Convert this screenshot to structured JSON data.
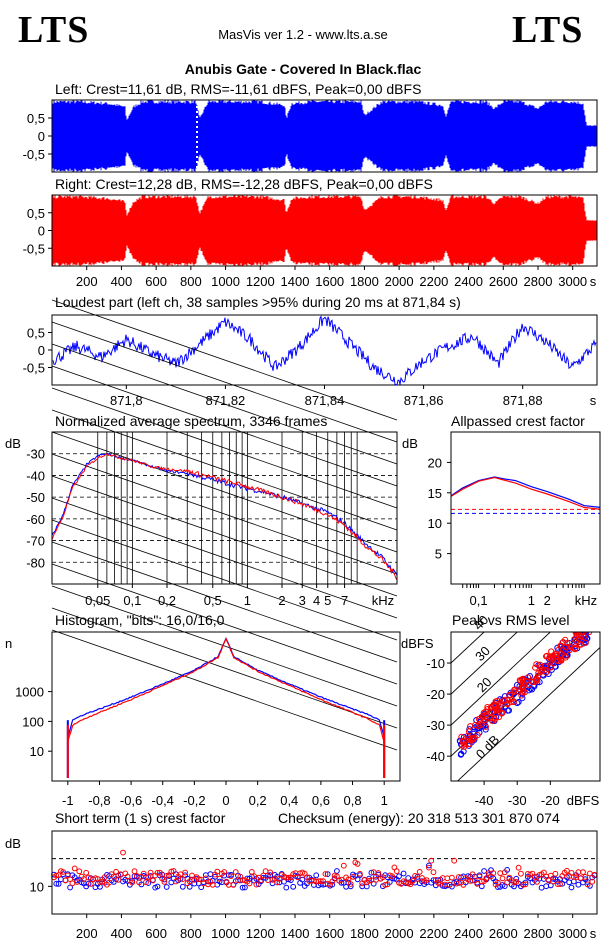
{
  "header": {
    "logo_left": "LTS",
    "logo_right": "LTS",
    "app_title": "MasVis ver 1.2 - www.lts.a.se",
    "file_title": "Anubis Gate - Covered In Black.flac"
  },
  "captions": {
    "left": "Left: Crest=11,61 dB, RMS=-11,61 dBFS, Peak=0,00 dBFS",
    "right": "Right: Crest=12,28 dB, RMS=-12,28 dBFS, Peak=0,00 dBFS",
    "loudest": "Loudest part (left  ch, 38 samples >95% during 20 ms at 871,84 s)",
    "spectrum": "Normalized average spectrum, 3346 frames",
    "allpass": "Allpassed crest factor",
    "histogram": "Histogram, \"bits\": 16,0/16,0",
    "peak_rms": "Peak vs RMS level",
    "short_term": "Short term (1 s) crest factor",
    "checksum": "Checksum (energy):  20 318 513 301 870 074"
  },
  "colors": {
    "left": "#0000ff",
    "right": "#ff0000"
  },
  "chart_data": [
    {
      "id": "left-waveform",
      "type": "area",
      "title": "Left: Crest=11,61 dB, RMS=-11,61 dBFS, Peak=0,00 dBFS",
      "series": [
        {
          "name": "Left",
          "color": "#0000ff"
        }
      ],
      "xlim": [
        0,
        3140
      ],
      "ylim": [
        -1,
        1
      ],
      "y_ticks": [
        "0,5",
        "0",
        "-0,5"
      ],
      "envelope": {
        "x": [
          0,
          60,
          150,
          320,
          420,
          430,
          470,
          520,
          700,
          830,
          850,
          900,
          1000,
          1200,
          1340,
          1350,
          1380,
          1500,
          1700,
          1780,
          1800,
          1900,
          2100,
          2250,
          2270,
          2300,
          2500,
          2550,
          2600,
          2700,
          2800,
          2850,
          2900,
          3000,
          3060,
          3080,
          3140
        ],
        "amplitude": [
          1,
          1,
          1,
          0.95,
          0.85,
          0.45,
          0.85,
          1,
          1,
          1,
          0.5,
          1,
          1,
          1,
          0.9,
          0.5,
          0.95,
          1,
          1,
          1,
          0.6,
          1,
          1,
          0.9,
          0.6,
          1,
          1,
          0.8,
          1,
          1,
          0.8,
          1,
          1,
          1,
          0.95,
          0.3,
          0.3
        ]
      }
    },
    {
      "id": "right-waveform",
      "type": "area",
      "title": "Right: Crest=12,28 dB, RMS=-12,28 dBFS, Peak=0,00 dBFS",
      "series": [
        {
          "name": "Right",
          "color": "#ff0000"
        }
      ],
      "xlim": [
        0,
        3140
      ],
      "ylim": [
        -1,
        1
      ],
      "y_ticks": [
        "0,5",
        "0",
        "-0,5"
      ],
      "x_ticks": [
        "200",
        "400",
        "600",
        "800",
        "1000",
        "1200",
        "1400",
        "1600",
        "1800",
        "2000",
        "2200",
        "2400",
        "2600",
        "2800",
        "3000"
      ],
      "xlabel": "s",
      "envelope": {
        "x": [
          0,
          60,
          150,
          320,
          420,
          430,
          470,
          520,
          700,
          830,
          850,
          900,
          1000,
          1200,
          1340,
          1350,
          1380,
          1500,
          1700,
          1780,
          1800,
          1900,
          2100,
          2250,
          2270,
          2300,
          2500,
          2550,
          2600,
          2700,
          2800,
          2850,
          2900,
          3000,
          3060,
          3080,
          3140
        ],
        "amplitude": [
          1,
          1,
          1,
          0.95,
          0.85,
          0.45,
          0.85,
          1,
          1,
          1,
          0.5,
          1,
          1,
          1,
          0.9,
          0.5,
          0.95,
          1,
          1,
          1,
          0.6,
          1,
          1,
          0.9,
          0.6,
          1,
          1,
          0.8,
          1,
          1,
          0.8,
          1,
          1,
          1,
          0.95,
          0.3,
          0.3
        ]
      }
    },
    {
      "id": "loudest-part",
      "type": "line",
      "title": "Loudest part (left  ch, 38 samples >95% during 20 ms at 871,84 s)",
      "series": [
        {
          "name": "Left",
          "color": "#0000ff"
        }
      ],
      "xlim": [
        871.785,
        871.895
      ],
      "ylim": [
        -1,
        1
      ],
      "x_ticks": [
        "871,8",
        "871,82",
        "871,84",
        "871,86",
        "871,88"
      ],
      "y_ticks": [
        "0,5",
        "0",
        "-0,5"
      ],
      "xlabel": "s",
      "x": [
        871.785,
        871.79,
        871.795,
        871.8,
        871.805,
        871.81,
        871.815,
        871.82,
        871.825,
        871.83,
        871.835,
        871.84,
        871.845,
        871.85,
        871.855,
        871.86,
        871.865,
        871.87,
        871.875,
        871.88,
        871.885,
        871.89,
        871.895
      ],
      "y": [
        -0.3,
        0.1,
        -0.2,
        0.3,
        -0.1,
        -0.4,
        0.2,
        0.8,
        0.3,
        -0.5,
        0.1,
        0.9,
        0.2,
        -0.5,
        -0.9,
        -0.3,
        0.1,
        0.4,
        -0.4,
        0.7,
        0.2,
        -0.5,
        0.2
      ]
    },
    {
      "id": "spectrum",
      "type": "line",
      "title": "Normalized average spectrum, 3346 frames",
      "ylabel": "dB",
      "xlabel": "kHz",
      "x_scale": "log",
      "xlim": [
        0.02,
        20
      ],
      "ylim": [
        -90,
        -20
      ],
      "x_ticks": [
        "0,05",
        "0,1",
        "0,2",
        "0,5",
        "1",
        "2",
        "3",
        "4",
        "5",
        "7"
      ],
      "y_ticks": [
        "-30",
        "-40",
        "-50",
        "-60",
        "-70",
        "-80"
      ],
      "series": [
        {
          "name": "Left",
          "color": "#0000ff",
          "x": [
            0.02,
            0.025,
            0.03,
            0.04,
            0.05,
            0.06,
            0.08,
            0.1,
            0.15,
            0.2,
            0.3,
            0.5,
            0.7,
            1,
            1.5,
            2,
            3,
            5,
            7,
            10,
            15,
            20
          ],
          "y": [
            -68,
            -58,
            -45,
            -35,
            -31,
            -30,
            -32,
            -33,
            -36,
            -38,
            -39,
            -42,
            -44,
            -46,
            -48,
            -50,
            -53,
            -57,
            -62,
            -70,
            -78,
            -86
          ]
        },
        {
          "name": "Right",
          "color": "#ff0000",
          "x": [
            0.02,
            0.025,
            0.03,
            0.04,
            0.05,
            0.06,
            0.08,
            0.1,
            0.15,
            0.2,
            0.3,
            0.5,
            0.7,
            1,
            1.5,
            2,
            3,
            5,
            7,
            10,
            15,
            20
          ],
          "y": [
            -69,
            -59,
            -46,
            -36,
            -32,
            -30,
            -32,
            -33,
            -36,
            -37,
            -38,
            -41,
            -43,
            -45,
            -48,
            -50,
            -53,
            -58,
            -63,
            -71,
            -79,
            -87
          ]
        }
      ]
    },
    {
      "id": "allpassed-crest",
      "type": "line",
      "title": "Allpassed crest factor",
      "ylabel": "dB",
      "xlabel": "kHz",
      "x_scale": "log",
      "xlim": [
        0.03,
        20
      ],
      "ylim": [
        0,
        25
      ],
      "x_ticks": [
        "0,1",
        "1",
        "2"
      ],
      "y_ticks": [
        "20",
        "15",
        "10",
        "5"
      ],
      "reference_lines": [
        {
          "y": 11.61,
          "color": "#0000ff"
        },
        {
          "y": 12.28,
          "color": "#ff0000"
        }
      ],
      "series": [
        {
          "name": "Left",
          "color": "#0000ff",
          "x": [
            0.03,
            0.05,
            0.1,
            0.2,
            0.3,
            0.5,
            1,
            2,
            5,
            10,
            20
          ],
          "y": [
            14.5,
            15.8,
            17,
            17.6,
            17.3,
            17,
            16,
            15.2,
            14,
            12.9,
            12.6
          ]
        },
        {
          "name": "Right",
          "color": "#ff0000",
          "x": [
            0.03,
            0.05,
            0.1,
            0.2,
            0.3,
            0.5,
            1,
            2,
            5,
            10,
            20
          ],
          "y": [
            14.4,
            15.6,
            16.9,
            17.5,
            17.1,
            16.6,
            15.6,
            14.8,
            13.6,
            12.6,
            12.3
          ]
        }
      ]
    },
    {
      "id": "histogram",
      "type": "line",
      "title": "Histogram, \"bits\": 16,0/16,0",
      "ylabel": "n",
      "y_scale": "log",
      "xlim": [
        -1.1,
        1.1
      ],
      "ylim": [
        1,
        100000
      ],
      "x_ticks": [
        "-1",
        "-0,8",
        "-0,6",
        "-0,4",
        "-0,2",
        "0",
        "0,2",
        "0,4",
        "0,6",
        "0,8",
        "1"
      ],
      "y_ticks": [
        "1000",
        "100",
        "10"
      ],
      "series": [
        {
          "name": "Left",
          "color": "#0000ff",
          "x": [
            -1,
            -0.97,
            -0.9,
            -0.8,
            -0.6,
            -0.4,
            -0.2,
            -0.05,
            0,
            0.05,
            0.2,
            0.4,
            0.6,
            0.8,
            0.9,
            0.97,
            1
          ],
          "y": [
            30,
            110,
            170,
            260,
            650,
            1800,
            5200,
            15000,
            60000,
            15000,
            5200,
            1800,
            650,
            260,
            170,
            110,
            30
          ]
        },
        {
          "name": "Right",
          "color": "#ff0000",
          "x": [
            -1,
            -0.97,
            -0.9,
            -0.8,
            -0.6,
            -0.4,
            -0.2,
            -0.05,
            0,
            0.05,
            0.2,
            0.4,
            0.6,
            0.8,
            0.9,
            0.97,
            1
          ],
          "y": [
            20,
            75,
            120,
            200,
            540,
            1600,
            4800,
            14000,
            60000,
            14000,
            4800,
            1600,
            540,
            200,
            120,
            75,
            20
          ]
        }
      ]
    },
    {
      "id": "peak-vs-rms",
      "type": "scatter",
      "title": "Peak vs RMS level",
      "ylabel": "dBFS",
      "xlabel": "dBFS",
      "xlim": [
        -50,
        -5
      ],
      "ylim": [
        -48,
        0
      ],
      "x_ticks": [
        "-40",
        "-30",
        "-20"
      ],
      "y_ticks": [
        "-10",
        "-20",
        "-30",
        "-40"
      ],
      "crest_lines": [
        "0 dB",
        "10",
        "20",
        "30",
        "40"
      ],
      "series": [
        {
          "name": "Left",
          "color": "#0000ff",
          "rms": [
            -48,
            -44,
            -40,
            -36,
            -32,
            -28,
            -24,
            -20,
            -16,
            -12,
            -10,
            -8
          ],
          "peak": [
            -38,
            -33,
            -29,
            -25,
            -22,
            -18,
            -14,
            -10,
            -6,
            -3,
            -1,
            0
          ]
        },
        {
          "name": "Right",
          "color": "#ff0000",
          "rms": [
            -47,
            -43,
            -39,
            -35,
            -31,
            -27,
            -23,
            -19,
            -15,
            -12,
            -10,
            -8
          ],
          "peak": [
            -36,
            -32,
            -27,
            -24,
            -20,
            -16,
            -12,
            -8,
            -5,
            -2,
            -1,
            0
          ]
        }
      ]
    },
    {
      "id": "short-term-crest",
      "type": "scatter",
      "title": "Short term (1 s) crest factor",
      "ylabel": "dB",
      "xlabel": "s",
      "xlim": [
        0,
        3140
      ],
      "ylim": [
        0,
        30
      ],
      "x_ticks": [
        "200",
        "400",
        "600",
        "800",
        "1000",
        "1200",
        "1400",
        "1600",
        "1800",
        "2000",
        "2200",
        "2400",
        "2600",
        "2800",
        "3000"
      ],
      "y_ticks": [
        "10"
      ],
      "reference_line": 20,
      "series": [
        {
          "name": "Left",
          "color": "#0000ff",
          "x": [
            0,
            300,
            430,
            600,
            850,
            1000,
            1350,
            1500,
            1800,
            2000,
            2270,
            2500,
            2850,
            3000,
            3080
          ],
          "y": [
            12,
            13,
            18,
            12,
            17,
            12,
            15,
            12,
            16,
            12,
            18,
            13,
            19,
            12,
            22
          ]
        },
        {
          "name": "Right",
          "color": "#ff0000",
          "x": [
            0,
            300,
            430,
            600,
            850,
            1000,
            1350,
            1500,
            1800,
            2000,
            2270,
            2500,
            2850,
            3000,
            3080
          ],
          "y": [
            13,
            14,
            20,
            13,
            18,
            13,
            16,
            13,
            17,
            13,
            19,
            14,
            20,
            13,
            24
          ]
        }
      ]
    }
  ]
}
